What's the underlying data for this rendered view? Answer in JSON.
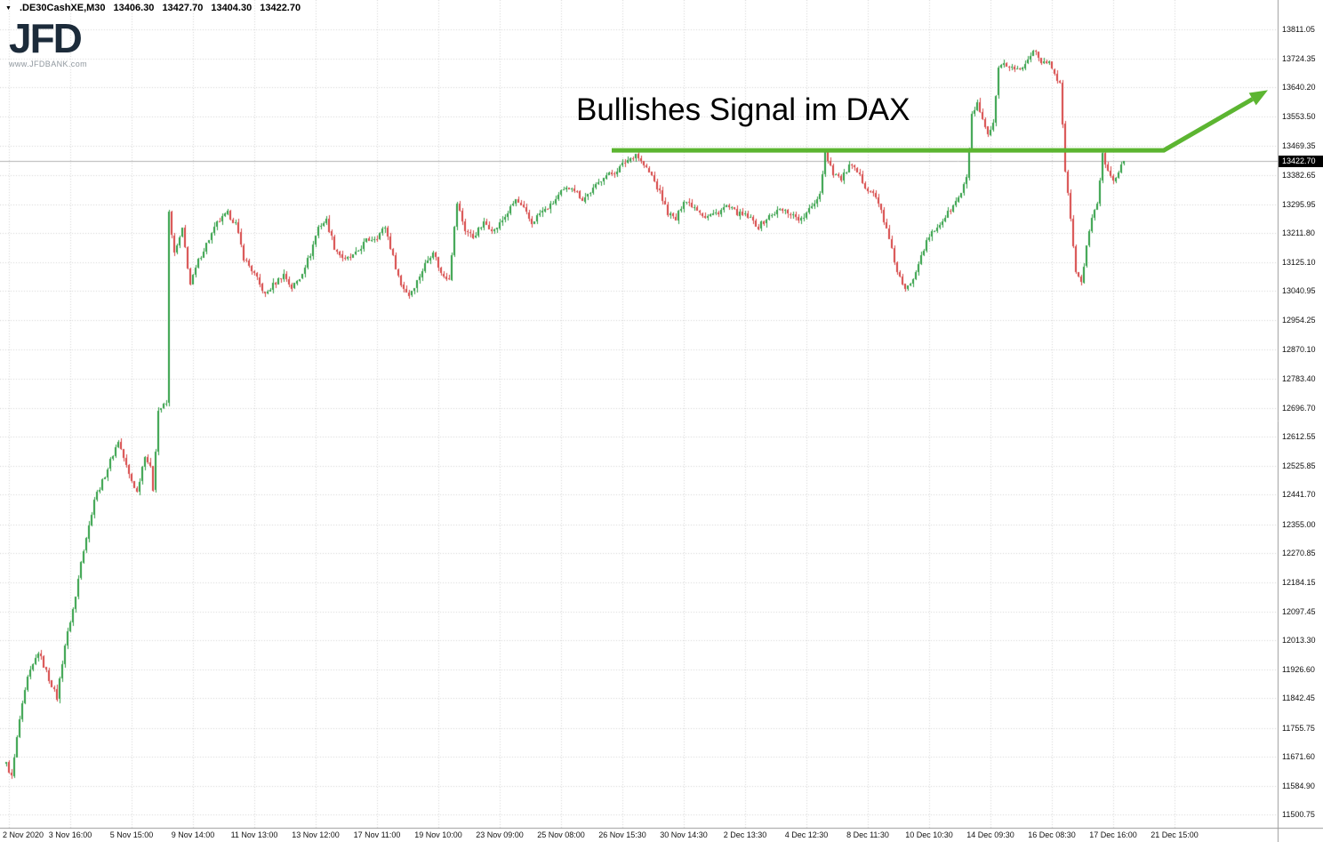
{
  "header": {
    "dropdown_icon": "▼",
    "symbol": ".DE30CashXE,M30",
    "open": "13406.30",
    "high": "13427.70",
    "low": "13404.30",
    "close": "13422.70"
  },
  "logo": {
    "text": "JFD",
    "url": "www.JFDBANK.com"
  },
  "annotation": {
    "title": "Bullishes Signal im DAX"
  },
  "price_tag": {
    "value": "13422.70"
  },
  "chart_data": {
    "type": "candlestick",
    "symbol": ".DE30CashXE",
    "timeframe": "M30",
    "title": "Bullishes Signal im DAX",
    "grid": "dotted",
    "ylim": [
      11500.75,
      13811.05
    ],
    "quote": {
      "open": 13406.3,
      "high": 13427.7,
      "low": 13404.3,
      "close": 13422.7
    },
    "y_axis": [
      "13811.05",
      "13724.35",
      "13640.20",
      "13553.50",
      "13469.35",
      "13382.65",
      "13295.95",
      "13211.80",
      "13125.10",
      "13040.95",
      "12954.25",
      "12870.10",
      "12783.40",
      "12696.70",
      "12612.55",
      "12525.85",
      "12441.70",
      "12355.00",
      "12270.85",
      "12184.15",
      "12097.45",
      "12013.30",
      "11926.60",
      "11842.45",
      "11755.75",
      "11671.60",
      "11584.90",
      "11500.75"
    ],
    "x_axis": [
      "2 Nov 2020",
      "3 Nov 16:00",
      "5 Nov 15:00",
      "9 Nov 14:00",
      "11 Nov 13:00",
      "13 Nov 12:00",
      "17 Nov 11:00",
      "19 Nov 10:00",
      "23 Nov 09:00",
      "25 Nov 08:00",
      "26 Nov 15:30",
      "30 Nov 14:30",
      "2 Dec 13:30",
      "4 Dec 12:30",
      "8 Dec 11:30",
      "10 Dec 10:30",
      "14 Dec 09:30",
      "16 Dec 08:30",
      "17 Dec 16:00",
      "21 Dec 15:00"
    ],
    "x_label_indices": [
      1,
      24,
      47,
      70,
      93,
      116,
      139,
      162,
      185,
      208,
      231,
      254,
      277,
      300,
      323,
      346,
      369,
      392,
      415,
      438
    ],
    "candle_count": 420,
    "price_path": [
      [
        0,
        11650
      ],
      [
        2,
        11610
      ],
      [
        5,
        11780
      ],
      [
        8,
        11900
      ],
      [
        12,
        11980
      ],
      [
        16,
        11900
      ],
      [
        19,
        11845
      ],
      [
        22,
        12000
      ],
      [
        26,
        12140
      ],
      [
        28,
        12250
      ],
      [
        31,
        12350
      ],
      [
        33,
        12430
      ],
      [
        36,
        12480
      ],
      [
        38,
        12520
      ],
      [
        42,
        12600
      ],
      [
        44,
        12550
      ],
      [
        46,
        12500
      ],
      [
        49,
        12450
      ],
      [
        52,
        12560
      ],
      [
        54,
        12520
      ],
      [
        55,
        12460
      ],
      [
        57,
        12690
      ],
      [
        60,
        12710
      ],
      [
        61,
        13270
      ],
      [
        63,
        13150
      ],
      [
        66,
        13220
      ],
      [
        69,
        13060
      ],
      [
        72,
        13130
      ],
      [
        75,
        13180
      ],
      [
        79,
        13240
      ],
      [
        83,
        13270
      ],
      [
        86,
        13240
      ],
      [
        89,
        13140
      ],
      [
        93,
        13090
      ],
      [
        97,
        13030
      ],
      [
        100,
        13060
      ],
      [
        104,
        13090
      ],
      [
        107,
        13050
      ],
      [
        110,
        13080
      ],
      [
        114,
        13150
      ],
      [
        117,
        13230
      ],
      [
        120,
        13250
      ],
      [
        123,
        13170
      ],
      [
        127,
        13130
      ],
      [
        131,
        13150
      ],
      [
        135,
        13190
      ],
      [
        139,
        13200
      ],
      [
        142,
        13230
      ],
      [
        145,
        13140
      ],
      [
        148,
        13060
      ],
      [
        151,
        13030
      ],
      [
        154,
        13070
      ],
      [
        157,
        13120
      ],
      [
        160,
        13160
      ],
      [
        163,
        13090
      ],
      [
        166,
        13080
      ],
      [
        169,
        13300
      ],
      [
        172,
        13220
      ],
      [
        175,
        13200
      ],
      [
        179,
        13240
      ],
      [
        183,
        13220
      ],
      [
        187,
        13260
      ],
      [
        191,
        13310
      ],
      [
        194,
        13280
      ],
      [
        197,
        13240
      ],
      [
        200,
        13270
      ],
      [
        204,
        13290
      ],
      [
        208,
        13330
      ],
      [
        212,
        13350
      ],
      [
        216,
        13310
      ],
      [
        220,
        13340
      ],
      [
        224,
        13380
      ],
      [
        228,
        13390
      ],
      [
        232,
        13420
      ],
      [
        236,
        13445
      ],
      [
        239,
        13410
      ],
      [
        242,
        13380
      ],
      [
        245,
        13330
      ],
      [
        248,
        13270
      ],
      [
        251,
        13250
      ],
      [
        254,
        13310
      ],
      [
        258,
        13290
      ],
      [
        262,
        13260
      ],
      [
        266,
        13270
      ],
      [
        270,
        13290
      ],
      [
        274,
        13270
      ],
      [
        278,
        13260
      ],
      [
        282,
        13230
      ],
      [
        286,
        13260
      ],
      [
        290,
        13280
      ],
      [
        294,
        13270
      ],
      [
        298,
        13250
      ],
      [
        302,
        13290
      ],
      [
        305,
        13330
      ],
      [
        307,
        13450
      ],
      [
        310,
        13390
      ],
      [
        313,
        13370
      ],
      [
        316,
        13410
      ],
      [
        319,
        13390
      ],
      [
        322,
        13350
      ],
      [
        325,
        13330
      ],
      [
        328,
        13280
      ],
      [
        331,
        13190
      ],
      [
        334,
        13100
      ],
      [
        337,
        13040
      ],
      [
        340,
        13080
      ],
      [
        343,
        13150
      ],
      [
        346,
        13200
      ],
      [
        349,
        13230
      ],
      [
        352,
        13260
      ],
      [
        355,
        13290
      ],
      [
        358,
        13330
      ],
      [
        360,
        13370
      ],
      [
        362,
        13560
      ],
      [
        364,
        13590
      ],
      [
        366,
        13540
      ],
      [
        368,
        13500
      ],
      [
        370,
        13530
      ],
      [
        372,
        13690
      ],
      [
        374,
        13710
      ],
      [
        377,
        13700
      ],
      [
        380,
        13690
      ],
      [
        383,
        13720
      ],
      [
        385,
        13755
      ],
      [
        387,
        13730
      ],
      [
        389,
        13710
      ],
      [
        391,
        13720
      ],
      [
        393,
        13680
      ],
      [
        395,
        13650
      ],
      [
        397,
        13400
      ],
      [
        399,
        13250
      ],
      [
        401,
        13100
      ],
      [
        403,
        13060
      ],
      [
        405,
        13180
      ],
      [
        407,
        13250
      ],
      [
        409,
        13300
      ],
      [
        411,
        13440
      ],
      [
        413,
        13400
      ],
      [
        415,
        13370
      ],
      [
        417,
        13390
      ],
      [
        419,
        13422.7
      ]
    ],
    "signal": {
      "price": 13455,
      "start_index": 227,
      "end_index": 434,
      "arrow_tip_index": 473,
      "arrow_tip_price": 13632,
      "color": "#5cb531",
      "width": 5
    },
    "colors": {
      "up": "#2f9e44",
      "down": "#d64545",
      "grid": "#d6d6d6",
      "axis": "#9a9a9a",
      "price_line": "#b4b4b4",
      "signal": "#5cb531"
    }
  }
}
